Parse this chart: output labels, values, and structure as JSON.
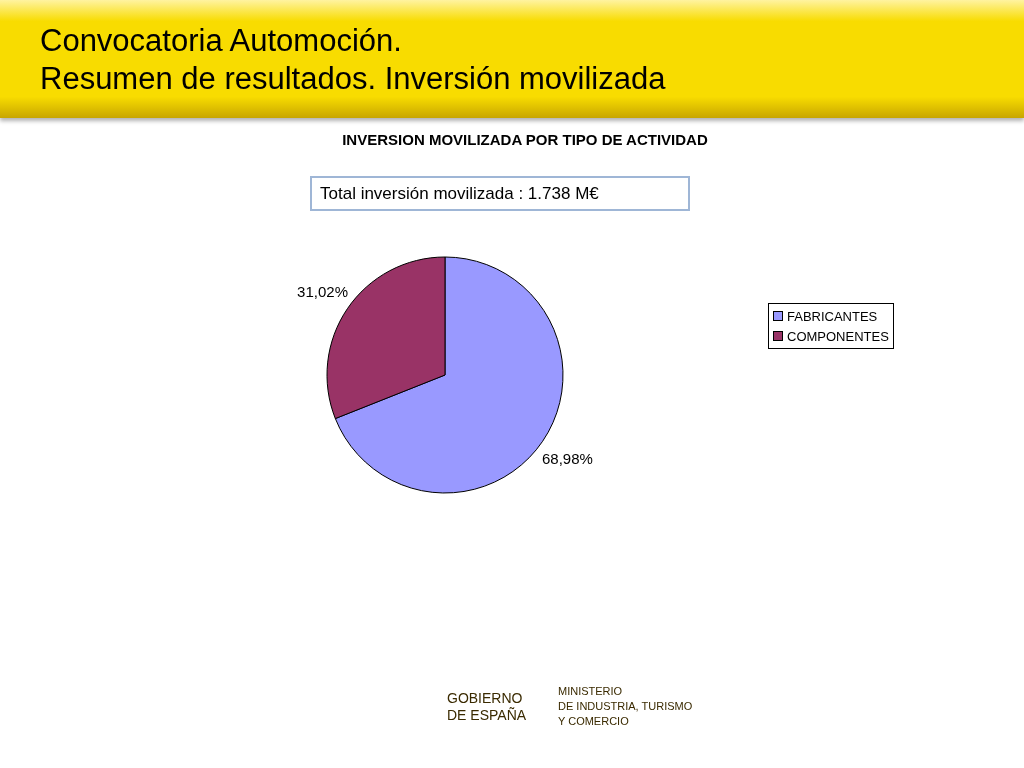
{
  "chart_data": {
    "type": "pie",
    "title": "Convocatoria Automoción.\nResumen de resultados. Inversión movilizada",
    "subtitle": "INVERSION MOVILIZADA POR TIPO DE ACTIVIDAD",
    "categories": [
      "FABRICANTES",
      "COMPONENTES"
    ],
    "values": [
      68.98,
      31.02
    ],
    "colors": [
      "#9999ff",
      "#993366"
    ],
    "value_labels": [
      "68,98%",
      "31,02%"
    ],
    "legend": "right",
    "annotations": [
      "Total inversión movilizada : 1.738 M€",
      "GOBIERNO\nDE ESPAÑA",
      "MINISTERIO\nDE INDUSTRIA, TURISMO\nY COMERCIO"
    ]
  }
}
